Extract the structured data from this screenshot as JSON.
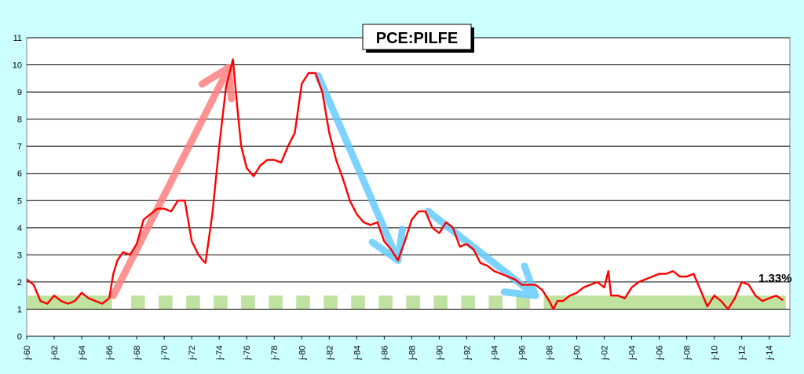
{
  "chart_data": {
    "type": "line",
    "title": "PCE:PILFE",
    "xlabel": "",
    "ylabel": "",
    "ylim": [
      0,
      11
    ],
    "xlim": [
      1960,
      2015.5
    ],
    "grid": true,
    "y_ticks": [
      "0",
      "1",
      "2",
      "3",
      "4",
      "5",
      "6",
      "7",
      "8",
      "9",
      "10",
      "11"
    ],
    "x_ticks": [
      "j-60",
      "j-62",
      "j-64",
      "j-66",
      "j-68",
      "j-70",
      "j-72",
      "j-74",
      "j-76",
      "j-78",
      "j-80",
      "j-82",
      "j-84",
      "j-86",
      "j-88",
      "j-90",
      "j-92",
      "j-94",
      "j-96",
      "j-98",
      "j-00",
      "j-02",
      "j-04",
      "j-06",
      "j-08",
      "j-10",
      "j-12",
      "j-14"
    ],
    "last_value_label": "1.33%",
    "target_band": [
      1,
      1.5
    ],
    "colors": {
      "background": "#ccffff",
      "plot_area": "#ffffff",
      "line": "#ff0000",
      "band": "#bfe2a0",
      "up_arrow": "#ff8080",
      "down_arrow": "#66ccff"
    },
    "series": [
      {
        "x": [
          1960.0,
          1960.5,
          1961.0,
          1961.5,
          1962.0,
          1962.5,
          1963.0,
          1963.5,
          1964.0,
          1964.5,
          1965.0,
          1965.5,
          1966.0,
          1966.3,
          1966.6,
          1967.0,
          1967.5,
          1968.0,
          1968.5,
          1969.0,
          1969.5,
          1970.0,
          1970.5,
          1971.0,
          1971.5,
          1972.0,
          1972.5,
          1972.8,
          1973.0,
          1973.5,
          1974.0,
          1974.5,
          1975.0,
          1975.3,
          1975.6,
          1976.0,
          1976.5,
          1977.0,
          1977.5,
          1978.0,
          1978.5,
          1979.0,
          1979.5,
          1980.0,
          1980.5,
          1981.0,
          1981.5,
          1982.0,
          1982.5,
          1983.0,
          1983.5,
          1984.0,
          1984.5,
          1985.0,
          1985.5,
          1986.0,
          1986.5,
          1987.0,
          1987.5,
          1988.0,
          1988.5,
          1989.0,
          1989.5,
          1990.0,
          1990.5,
          1991.0,
          1991.5,
          1992.0,
          1992.5,
          1993.0,
          1993.5,
          1994.0,
          1994.5,
          1995.0,
          1995.5,
          1996.0,
          1996.5,
          1997.0,
          1997.5,
          1998.0,
          1998.3,
          1998.6,
          1999.0,
          1999.5,
          2000.0,
          2000.5,
          2001.0,
          2001.5,
          2002.0,
          2002.3,
          2002.5,
          2003.0,
          2003.5,
          2004.0,
          2004.5,
          2005.0,
          2005.5,
          2006.0,
          2006.5,
          2007.0,
          2007.5,
          2008.0,
          2008.5,
          2009.0,
          2009.5,
          2010.0,
          2010.5,
          2011.0,
          2011.5,
          2012.0,
          2012.5,
          2013.0,
          2013.5,
          2014.0,
          2014.5,
          2015.0
        ],
        "values": [
          2.1,
          1.9,
          1.3,
          1.2,
          1.5,
          1.3,
          1.2,
          1.3,
          1.6,
          1.4,
          1.3,
          1.2,
          1.4,
          2.3,
          2.8,
          3.1,
          3.0,
          3.4,
          4.3,
          4.5,
          4.7,
          4.7,
          4.6,
          5.0,
          5.0,
          3.5,
          3.0,
          2.8,
          2.7,
          4.5,
          7.0,
          9.2,
          10.2,
          8.5,
          7.0,
          6.2,
          5.9,
          6.3,
          6.5,
          6.5,
          6.4,
          7.0,
          7.5,
          9.3,
          9.7,
          9.7,
          9.0,
          7.5,
          6.5,
          5.8,
          5.0,
          4.5,
          4.2,
          4.1,
          4.2,
          3.5,
          3.2,
          2.8,
          3.5,
          4.3,
          4.6,
          4.6,
          4.0,
          3.8,
          4.2,
          4.0,
          3.3,
          3.4,
          3.2,
          2.7,
          2.6,
          2.4,
          2.3,
          2.2,
          2.1,
          1.9,
          1.9,
          1.9,
          1.7,
          1.3,
          1.0,
          1.3,
          1.3,
          1.5,
          1.6,
          1.8,
          1.9,
          2.0,
          1.8,
          2.4,
          1.5,
          1.5,
          1.4,
          1.8,
          2.0,
          2.1,
          2.2,
          2.3,
          2.3,
          2.4,
          2.2,
          2.2,
          2.3,
          1.7,
          1.1,
          1.5,
          1.3,
          1.0,
          1.4,
          2.0,
          1.9,
          1.5,
          1.3,
          1.4,
          1.5,
          1.33
        ]
      }
    ],
    "arrows": [
      {
        "from": [
          1966.3,
          1.5
        ],
        "to": [
          1974.7,
          9.9
        ],
        "color": "up"
      },
      {
        "from": [
          1981.2,
          9.6
        ],
        "to": [
          1987.0,
          2.8
        ],
        "color": "down"
      },
      {
        "from": [
          1989.2,
          4.6
        ],
        "to": [
          1997.0,
          1.5
        ],
        "color": "down"
      }
    ]
  }
}
